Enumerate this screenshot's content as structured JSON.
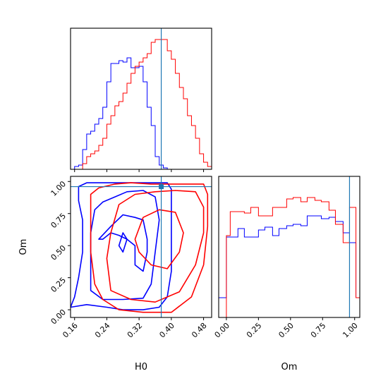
{
  "chart_data": {
    "type": "corner",
    "parameters": [
      "H0",
      "Om"
    ],
    "truth": {
      "H0": 0.375,
      "Om": 0.96
    },
    "colors": {
      "series_a": "#0000ff",
      "series_b": "#ff0000",
      "truth": "#1f77b4"
    },
    "axes": {
      "H0": {
        "range": [
          0.15,
          0.5
        ],
        "ticks": [
          "0.16",
          "0.24",
          "0.32",
          "0.40",
          "0.48"
        ],
        "label": "H0"
      },
      "Om": {
        "range": [
          -0.06,
          1.04
        ],
        "ticks": [
          "0.00",
          "0.25",
          "0.50",
          "0.75",
          "1.00"
        ],
        "label": "Om"
      }
    },
    "hist_H0": {
      "type": "step-histogram",
      "bin_edges": [
        0.15,
        0.16,
        0.17,
        0.18,
        0.19,
        0.2,
        0.21,
        0.22,
        0.23,
        0.24,
        0.25,
        0.26,
        0.27,
        0.28,
        0.29,
        0.3,
        0.31,
        0.32,
        0.33,
        0.34,
        0.35,
        0.36,
        0.37,
        0.38,
        0.39,
        0.4,
        0.41,
        0.42,
        0.43,
        0.44,
        0.45,
        0.46,
        0.47,
        0.48,
        0.49,
        0.5
      ],
      "ylim": [
        0,
        1.0
      ],
      "series": [
        {
          "color": "blue",
          "values": [
            0,
            0.02,
            0.03,
            0.14,
            0.25,
            0.27,
            0.32,
            0.36,
            0.44,
            0.62,
            0.75,
            0.75,
            0.77,
            0.76,
            0.79,
            0.72,
            0.72,
            0.73,
            0.62,
            0.44,
            0.31,
            0.09,
            0.03,
            0.01,
            0,
            0,
            0,
            0,
            0,
            0,
            0,
            0,
            0,
            0,
            0
          ]
        },
        {
          "color": "red",
          "values": [
            0,
            0,
            0,
            0.04,
            0.09,
            0.11,
            0.13,
            0.17,
            0.22,
            0.32,
            0.38,
            0.45,
            0.48,
            0.54,
            0.61,
            0.68,
            0.73,
            0.76,
            0.79,
            0.82,
            0.9,
            0.92,
            0.92,
            0.92,
            0.84,
            0.78,
            0.68,
            0.58,
            0.5,
            0.38,
            0.31,
            0.22,
            0.11,
            0.05,
            0.02
          ]
        }
      ]
    },
    "hist_Om": {
      "type": "step-histogram",
      "bin_edges": [
        -0.06,
        -0.0,
        0.03,
        0.09,
        0.14,
        0.19,
        0.25,
        0.3,
        0.36,
        0.41,
        0.47,
        0.52,
        0.58,
        0.63,
        0.69,
        0.74,
        0.8,
        0.85,
        0.91,
        0.96,
        1.01,
        1.04
      ],
      "ylim": [
        0,
        1.0
      ],
      "series": [
        {
          "color": "blue",
          "values": [
            0.14,
            0.57,
            0.57,
            0.63,
            0.57,
            0.57,
            0.62,
            0.64,
            0.58,
            0.63,
            0.65,
            0.66,
            0.65,
            0.72,
            0.72,
            0.7,
            0.71,
            0.68,
            0.6,
            0.53,
            0.14
          ]
        },
        {
          "color": "red",
          "values": [
            0,
            0.58,
            0.75,
            0.75,
            0.74,
            0.78,
            0.72,
            0.72,
            0.78,
            0.78,
            0.84,
            0.85,
            0.82,
            0.85,
            0.83,
            0.82,
            0.76,
            0.66,
            0.53,
            0.78,
            0.14
          ]
        }
      ]
    },
    "contours": {
      "type": "contour",
      "series": [
        {
          "color": "blue",
          "levels": [
            [
              [
                0.15,
                0.02
              ],
              [
                0.19,
                0.04
              ],
              [
                0.24,
                0.02
              ],
              [
                0.28,
                0.0
              ],
              [
                0.33,
                0.0
              ],
              [
                0.37,
                0.02
              ],
              [
                0.39,
                0.1
              ],
              [
                0.4,
                0.3
              ],
              [
                0.4,
                0.55
              ],
              [
                0.4,
                0.8
              ],
              [
                0.4,
                0.94
              ],
              [
                0.39,
                0.99
              ],
              [
                0.32,
                0.99
              ],
              [
                0.23,
                0.99
              ],
              [
                0.19,
                0.99
              ],
              [
                0.17,
                0.96
              ],
              [
                0.17,
                0.85
              ],
              [
                0.18,
                0.7
              ],
              [
                0.18,
                0.45
              ],
              [
                0.17,
                0.25
              ],
              [
                0.16,
                0.1
              ],
              [
                0.15,
                0.02
              ]
            ],
            [
              [
                0.2,
                0.15
              ],
              [
                0.23,
                0.08
              ],
              [
                0.28,
                0.08
              ],
              [
                0.33,
                0.09
              ],
              [
                0.35,
                0.2
              ],
              [
                0.36,
                0.45
              ],
              [
                0.37,
                0.7
              ],
              [
                0.36,
                0.88
              ],
              [
                0.33,
                0.93
              ],
              [
                0.29,
                0.92
              ],
              [
                0.26,
                0.88
              ],
              [
                0.23,
                0.84
              ],
              [
                0.21,
                0.78
              ],
              [
                0.2,
                0.6
              ],
              [
                0.2,
                0.4
              ],
              [
                0.2,
                0.15
              ]
            ],
            [
              [
                0.22,
                0.55
              ],
              [
                0.25,
                0.65
              ],
              [
                0.28,
                0.74
              ],
              [
                0.31,
                0.72
              ],
              [
                0.33,
                0.7
              ],
              [
                0.34,
                0.55
              ],
              [
                0.34,
                0.45
              ],
              [
                0.33,
                0.3
              ],
              [
                0.31,
                0.35
              ],
              [
                0.31,
                0.5
              ],
              [
                0.29,
                0.55
              ],
              [
                0.27,
                0.58
              ],
              [
                0.25,
                0.6
              ],
              [
                0.23,
                0.55
              ],
              [
                0.22,
                0.55
              ]
            ],
            [
              [
                0.27,
                0.5
              ],
              [
                0.28,
                0.6
              ],
              [
                0.29,
                0.55
              ],
              [
                0.28,
                0.45
              ],
              [
                0.27,
                0.5
              ]
            ]
          ]
        },
        {
          "color": "red",
          "levels": [
            [
              [
                0.27,
                0.0
              ],
              [
                0.33,
                -0.02
              ],
              [
                0.4,
                -0.02
              ],
              [
                0.45,
                0.1
              ],
              [
                0.48,
                0.35
              ],
              [
                0.49,
                0.65
              ],
              [
                0.49,
                0.9
              ],
              [
                0.48,
                0.98
              ],
              [
                0.44,
                0.98
              ],
              [
                0.4,
                0.98
              ],
              [
                0.35,
                0.98
              ],
              [
                0.3,
                0.99
              ],
              [
                0.26,
                0.98
              ],
              [
                0.22,
                0.95
              ],
              [
                0.2,
                0.9
              ],
              [
                0.2,
                0.7
              ],
              [
                0.2,
                0.45
              ],
              [
                0.21,
                0.2
              ],
              [
                0.23,
                0.08
              ],
              [
                0.27,
                0.0
              ]
            ],
            [
              [
                0.25,
                0.15
              ],
              [
                0.3,
                0.08
              ],
              [
                0.36,
                0.06
              ],
              [
                0.42,
                0.14
              ],
              [
                0.46,
                0.35
              ],
              [
                0.48,
                0.6
              ],
              [
                0.48,
                0.8
              ],
              [
                0.46,
                0.92
              ],
              [
                0.41,
                0.93
              ],
              [
                0.36,
                0.92
              ],
              [
                0.31,
                0.9
              ],
              [
                0.27,
                0.82
              ],
              [
                0.25,
                0.6
              ],
              [
                0.24,
                0.4
              ],
              [
                0.25,
                0.15
              ]
            ],
            [
              [
                0.31,
                0.55
              ],
              [
                0.33,
                0.72
              ],
              [
                0.37,
                0.78
              ],
              [
                0.41,
                0.76
              ],
              [
                0.43,
                0.6
              ],
              [
                0.42,
                0.45
              ],
              [
                0.39,
                0.32
              ],
              [
                0.35,
                0.35
              ],
              [
                0.32,
                0.45
              ],
              [
                0.31,
                0.55
              ]
            ]
          ]
        }
      ]
    }
  }
}
